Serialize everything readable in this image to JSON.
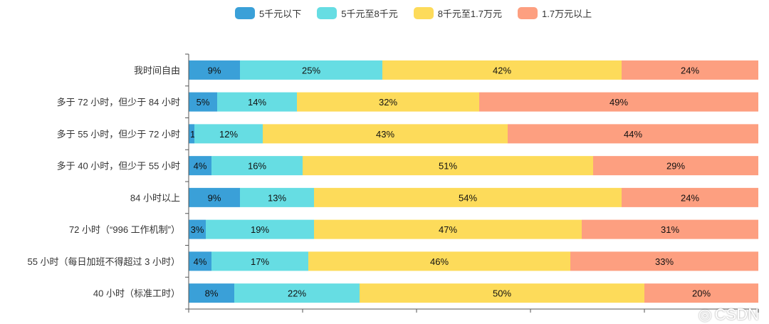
{
  "chart_data": {
    "type": "bar",
    "orientation": "horizontal",
    "stacked": true,
    "categories": [
      "我时间自由",
      "多于 72 小时，但少于 84 小时",
      "多于 55 小时，但少于 72 小时",
      "多于 40 小时，但少于 55 小时",
      "84 小时以上",
      "72 小时（“996 工作机制”）",
      "55 小时（每日加班不得超过 3 小时）",
      "40 小时（标准工时）"
    ],
    "series": [
      {
        "name": "5千元以下",
        "color": "#3aa0d8",
        "values": [
          9,
          5,
          1,
          4,
          9,
          3,
          4,
          8
        ]
      },
      {
        "name": "5千元至8千元",
        "color": "#66dde3",
        "values": [
          25,
          14,
          12,
          16,
          13,
          19,
          17,
          22
        ]
      },
      {
        "name": "8千元至1.7万元",
        "color": "#fddb5a",
        "values": [
          42,
          32,
          43,
          51,
          54,
          47,
          46,
          50
        ]
      },
      {
        "name": "1.7万元以上",
        "color": "#fd9f80",
        "values": [
          24,
          49,
          44,
          29,
          24,
          31,
          33,
          20
        ]
      }
    ],
    "value_suffix": "%",
    "xlim": [
      0,
      100
    ],
    "x_ticks": [
      0,
      20,
      40,
      60,
      80,
      100
    ],
    "legend_position": "top-center",
    "grid": false
  },
  "watermark": "CSDN"
}
